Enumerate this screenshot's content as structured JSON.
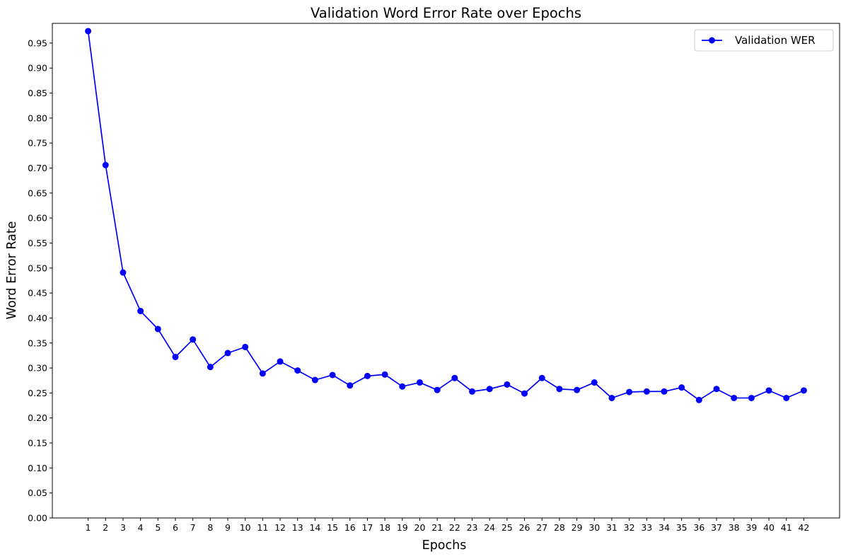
{
  "chart_data": {
    "type": "line",
    "title": "Validation Word Error Rate over Epochs",
    "xlabel": "Epochs",
    "ylabel": "Word Error Rate",
    "x": [
      1,
      2,
      3,
      4,
      5,
      6,
      7,
      8,
      9,
      10,
      11,
      12,
      13,
      14,
      15,
      16,
      17,
      18,
      19,
      20,
      21,
      22,
      23,
      24,
      25,
      26,
      27,
      28,
      29,
      30,
      31,
      32,
      33,
      34,
      35,
      36,
      37,
      38,
      39,
      40,
      41,
      42
    ],
    "xlim": [
      -1.05,
      44.05
    ],
    "ylim": [
      0,
      0.9895
    ],
    "yticks": [
      0.0,
      0.05,
      0.1,
      0.15,
      0.2,
      0.25,
      0.3,
      0.35,
      0.4,
      0.45,
      0.5,
      0.55,
      0.6,
      0.65,
      0.7,
      0.75,
      0.8,
      0.85,
      0.9,
      0.95
    ],
    "ytick_labels": [
      "0.00",
      "0.05",
      "0.10",
      "0.15",
      "0.20",
      "0.25",
      "0.30",
      "0.35",
      "0.40",
      "0.45",
      "0.50",
      "0.55",
      "0.60",
      "0.65",
      "0.70",
      "0.75",
      "0.80",
      "0.85",
      "0.90",
      "0.95"
    ],
    "grid": false,
    "legend_position": "top-right",
    "series": [
      {
        "name": "Validation WER",
        "color": "#0000ff",
        "marker": "circle",
        "values": [
          0.974,
          0.706,
          0.491,
          0.414,
          0.378,
          0.322,
          0.357,
          0.302,
          0.33,
          0.342,
          0.289,
          0.313,
          0.295,
          0.276,
          0.286,
          0.265,
          0.284,
          0.287,
          0.263,
          0.271,
          0.256,
          0.28,
          0.253,
          0.258,
          0.267,
          0.249,
          0.28,
          0.258,
          0.256,
          0.271,
          0.24,
          0.252,
          0.253,
          0.253,
          0.261,
          0.236,
          0.258,
          0.24,
          0.24,
          0.255,
          0.24,
          0.255
        ]
      }
    ]
  }
}
